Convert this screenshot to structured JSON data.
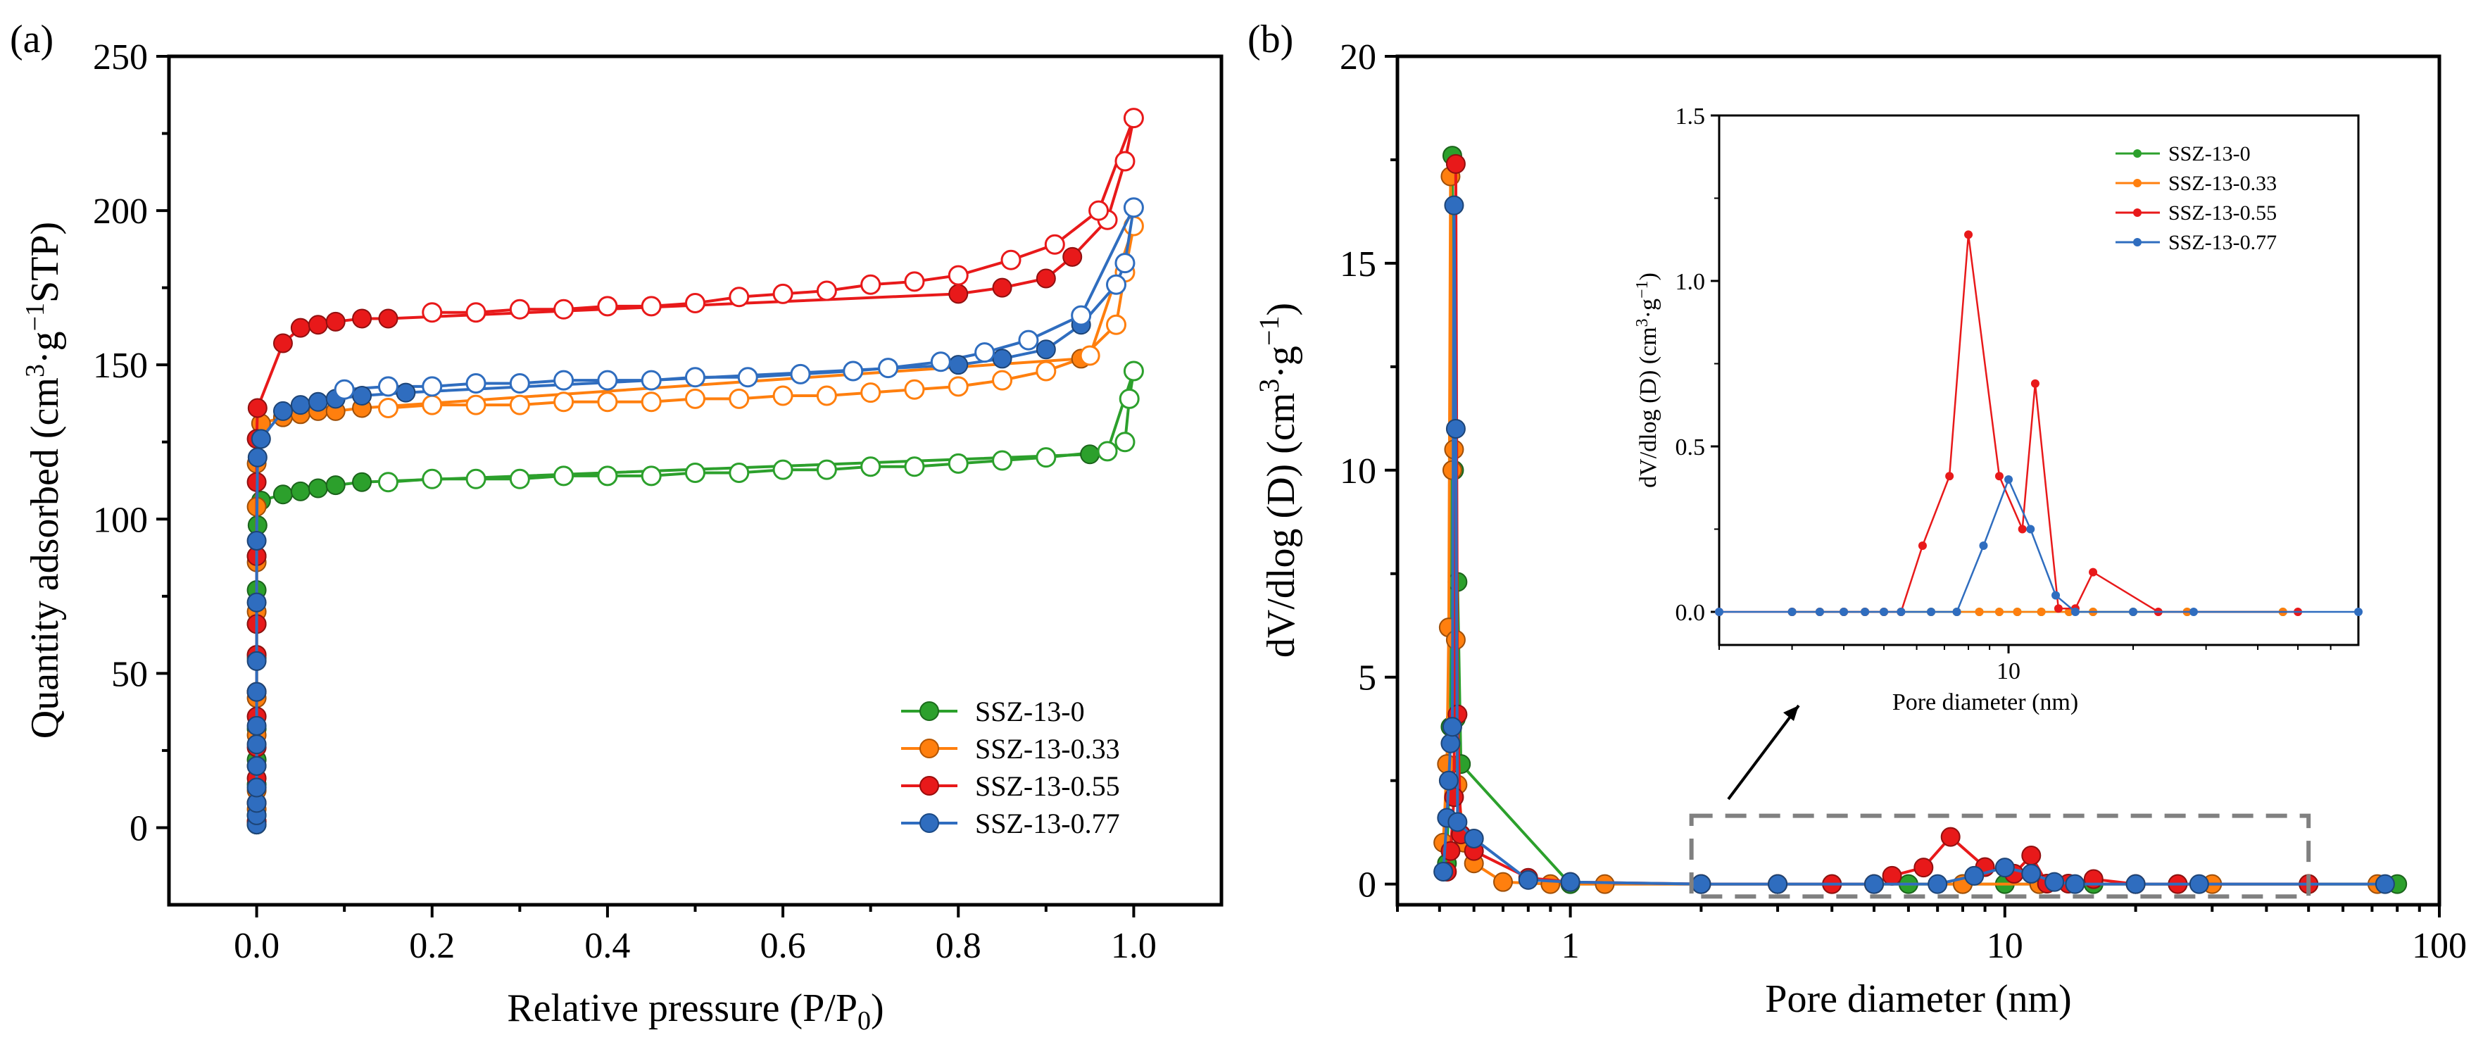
{
  "panel_a_label": "(a)",
  "panel_b_label": "(b)",
  "colors": {
    "SSZ-13-0": "#2ca02c",
    "SSZ-13-0.33": "#ff7f0e",
    "SSZ-13-0.55": "#e8191a",
    "SSZ-13-0.77": "#2f6dbf"
  },
  "chart_data": [
    {
      "id": "a",
      "type": "scatter",
      "title": "",
      "xlabel": "Relative pressure (P/P",
      "xlabel_sub": "0",
      "xlabel_end": ")",
      "ylabel_pre": "Quantity adsorbed (cm",
      "ylabel_sup1": "3",
      "ylabel_mid": "·g",
      "ylabel_sup2": "−1",
      "ylabel_end": "STP)",
      "xlim": [
        -0.1,
        1.1
      ],
      "ylim": [
        -25,
        250
      ],
      "xticks": [
        "0.0",
        "0.2",
        "0.4",
        "0.6",
        "0.8",
        "1.0"
      ],
      "xtick_values": [
        0,
        0.2,
        0.4,
        0.6,
        0.8,
        1.0
      ],
      "yticks": [
        "0",
        "50",
        "100",
        "150",
        "200",
        "250"
      ],
      "ytick_values": [
        0,
        50,
        100,
        150,
        200,
        250
      ],
      "legend": [
        "SSZ-13-0",
        "SSZ-13-0.33",
        "SSZ-13-0.55",
        "SSZ-13-0.77"
      ],
      "legend_position": "bottom-right",
      "series": [
        {
          "name": "SSZ-13-0",
          "adsorption": {
            "x": [
              0.0,
              0.0,
              0.0,
              0.0,
              0.0,
              0.0,
              0.0,
              0.0,
              0.0,
              0.0,
              0.0,
              0.001,
              0.005,
              0.03,
              0.05,
              0.07,
              0.09,
              0.12,
              0.95,
              0.99
            ],
            "y": [
              1,
              4,
              8,
              14,
              22,
              32,
              44,
              55,
              66,
              77,
              88,
              98,
              106,
              108,
              109,
              110,
              111,
              112,
              121,
              125
            ]
          },
          "desorption": {
            "x": [
              0.99,
              0.995,
              1.0,
              0.97,
              0.9,
              0.85,
              0.8,
              0.75,
              0.7,
              0.65,
              0.6,
              0.55,
              0.5,
              0.45,
              0.4,
              0.35,
              0.3,
              0.25,
              0.2,
              0.15
            ],
            "y": [
              125,
              139,
              148,
              122,
              120,
              119,
              118,
              117,
              117,
              116,
              116,
              115,
              115,
              114,
              114,
              114,
              113,
              113,
              113,
              112
            ]
          }
        },
        {
          "name": "SSZ-13-0.33",
          "adsorption": {
            "x": [
              0.0,
              0.0,
              0.0,
              0.0,
              0.0,
              0.0,
              0.0,
              0.0,
              0.0,
              0.0,
              0.0,
              0.001,
              0.005,
              0.03,
              0.05,
              0.07,
              0.09,
              0.12,
              0.94,
              0.98
            ],
            "y": [
              2,
              6,
              12,
              20,
              30,
              42,
              56,
              70,
              86,
              104,
              118,
              126,
              131,
              133,
              134,
              135,
              135,
              136,
              152,
              163
            ]
          },
          "desorption": {
            "x": [
              0.98,
              0.99,
              1.0,
              0.95,
              0.9,
              0.85,
              0.8,
              0.75,
              0.7,
              0.65,
              0.6,
              0.55,
              0.5,
              0.45,
              0.4,
              0.35,
              0.3,
              0.25,
              0.2,
              0.15
            ],
            "y": [
              163,
              180,
              195,
              153,
              148,
              145,
              143,
              142,
              141,
              140,
              140,
              139,
              139,
              138,
              138,
              138,
              137,
              137,
              137,
              136
            ]
          }
        },
        {
          "name": "SSZ-13-0.55",
          "adsorption": {
            "x": [
              0.0,
              0.0,
              0.0,
              0.0,
              0.0,
              0.0,
              0.0,
              0.0,
              0.0,
              0.0,
              0.0,
              0.001,
              0.03,
              0.05,
              0.07,
              0.09,
              0.12,
              0.15,
              0.8,
              0.85,
              0.9,
              0.93,
              0.97
            ],
            "y": [
              2,
              8,
              16,
              26,
              36,
              44,
              56,
              66,
              88,
              112,
              126,
              136,
              157,
              162,
              163,
              164,
              165,
              165,
              173,
              175,
              178,
              185,
              197
            ]
          },
          "desorption": {
            "x": [
              0.97,
              0.99,
              1.0,
              0.96,
              0.91,
              0.86,
              0.8,
              0.75,
              0.7,
              0.65,
              0.6,
              0.55,
              0.5,
              0.45,
              0.4,
              0.35,
              0.3,
              0.25,
              0.2
            ],
            "y": [
              197,
              216,
              230,
              200,
              189,
              184,
              179,
              177,
              176,
              174,
              173,
              172,
              170,
              169,
              169,
              168,
              168,
              167,
              167
            ]
          }
        },
        {
          "name": "SSZ-13-0.77",
          "adsorption": {
            "x": [
              0.0,
              0.0,
              0.0,
              0.0,
              0.0,
              0.0,
              0.0,
              0.0,
              0.0,
              0.0,
              0.0,
              0.001,
              0.005,
              0.03,
              0.05,
              0.07,
              0.09,
              0.12,
              0.17,
              0.8,
              0.85,
              0.9,
              0.94,
              0.98
            ],
            "y": [
              1,
              4,
              8,
              13,
              20,
              27,
              33,
              44,
              54,
              73,
              93,
              120,
              126,
              135,
              137,
              138,
              139,
              140,
              141,
              150,
              152,
              155,
              163,
              176
            ]
          },
          "desorption": {
            "x": [
              0.98,
              0.99,
              1.0,
              0.94,
              0.88,
              0.83,
              0.78,
              0.72,
              0.68,
              0.62,
              0.56,
              0.5,
              0.45,
              0.4,
              0.35,
              0.3,
              0.25,
              0.2,
              0.15,
              0.1
            ],
            "y": [
              176,
              183,
              201,
              166,
              158,
              154,
              151,
              149,
              148,
              147,
              146,
              146,
              145,
              145,
              145,
              144,
              144,
              143,
              143,
              142
            ]
          }
        }
      ]
    },
    {
      "id": "b",
      "type": "line",
      "title": "",
      "xlabel": "Pore diameter (nm)",
      "ylabel_pre": "dV/dlog (D) (cm",
      "ylabel_sup1": "3",
      "ylabel_mid": "·g",
      "ylabel_sup2": "−1",
      "ylabel_end": ")",
      "xscale": "log",
      "xlim": [
        0.4,
        100
      ],
      "ylim": [
        -0.5,
        20
      ],
      "xticks": [
        "1",
        "10",
        "100"
      ],
      "xtick_values": [
        1,
        10,
        100
      ],
      "yticks": [
        "0",
        "5",
        "10",
        "15",
        "20"
      ],
      "ytick_values": [
        0,
        5,
        10,
        15,
        20
      ],
      "highlight_box": {
        "x_range": [
          1.9,
          50
        ],
        "y_range": [
          -0.3,
          1.65
        ]
      },
      "series": [
        {
          "name": "SSZ-13-0",
          "x": [
            0.52,
            0.53,
            0.535,
            0.54,
            0.545,
            0.55,
            0.56,
            1.0,
            2.0,
            3.0,
            4.0,
            5.0,
            6.0,
            8.0,
            10.0,
            12.0,
            16.0,
            25.0,
            50.0,
            80.0
          ],
          "y": [
            0.5,
            3.8,
            17.6,
            10.0,
            4.0,
            7.3,
            2.9,
            0.0,
            0.0,
            0.0,
            0.0,
            0.0,
            0.0,
            0.0,
            0.0,
            0.0,
            0.0,
            0.0,
            0.0,
            0.0
          ]
        },
        {
          "name": "SSZ-13-0.33",
          "x": [
            0.51,
            0.52,
            0.525,
            0.53,
            0.535,
            0.54,
            0.545,
            0.55,
            0.57,
            0.6,
            0.7,
            0.9,
            1.2,
            2.0,
            3.0,
            5.0,
            8.0,
            12.0,
            20.0,
            30.0,
            50.0,
            72.0
          ],
          "y": [
            1.0,
            2.9,
            6.2,
            17.1,
            10.0,
            10.5,
            5.9,
            2.4,
            1.0,
            0.5,
            0.05,
            0.0,
            0.0,
            0.0,
            0.0,
            0.0,
            0.0,
            0.0,
            0.0,
            0.0,
            0.0,
            0.0
          ]
        },
        {
          "name": "SSZ-13-0.55",
          "x": [
            0.52,
            0.53,
            0.54,
            0.545,
            0.55,
            0.56,
            0.6,
            0.8,
            1.0,
            2.0,
            3.0,
            4.0,
            5.0,
            5.5,
            6.5,
            7.5,
            9.0,
            10.5,
            11.5,
            12.5,
            14.0,
            16.0,
            20.0,
            25.0,
            50.0
          ],
          "y": [
            0.3,
            0.8,
            2.1,
            17.4,
            4.1,
            1.2,
            0.8,
            0.15,
            0.05,
            0.0,
            0.0,
            0.0,
            0.0,
            0.2,
            0.4,
            1.14,
            0.41,
            0.25,
            0.69,
            0.01,
            0.01,
            0.12,
            0.0,
            0.0,
            0.0
          ]
        },
        {
          "name": "SSZ-13-0.77",
          "x": [
            0.51,
            0.52,
            0.525,
            0.53,
            0.535,
            0.54,
            0.545,
            0.55,
            0.6,
            0.8,
            1.0,
            2.0,
            3.0,
            5.0,
            7.0,
            8.5,
            10.0,
            11.5,
            13.0,
            14.5,
            20.0,
            28.0,
            75.0
          ],
          "y": [
            0.3,
            1.6,
            2.5,
            3.4,
            3.8,
            16.4,
            11.0,
            1.5,
            1.1,
            0.1,
            0.05,
            0.0,
            0.0,
            0.0,
            0.0,
            0.2,
            0.4,
            0.25,
            0.05,
            0.0,
            0.0,
            0.0,
            0.0
          ]
        }
      ],
      "inset": {
        "xscale": "log",
        "xlim": [
          2,
          70
        ],
        "ylim": [
          -0.1,
          1.5
        ],
        "xticks": [
          "10"
        ],
        "xtick_values": [
          10
        ],
        "yticks": [
          "0.0",
          "0.5",
          "1.0",
          "1.5"
        ],
        "ytick_values": [
          0,
          0.5,
          1.0,
          1.5
        ],
        "xlabel": "Pore diameter (nm)",
        "ylabel_pre": "dV/dlog (D) (cm",
        "ylabel_sup1": "3",
        "ylabel_mid": "·g",
        "ylabel_sup2": "−1",
        "ylabel_end": ")",
        "legend": [
          "SSZ-13-0",
          "SSZ-13-0.33",
          "SSZ-13-0.55",
          "SSZ-13-0.77"
        ],
        "legend_position": "top-right",
        "series": [
          {
            "name": "SSZ-13-0",
            "x": [
              3.0,
              3.5,
              4.0,
              4.5,
              5.0,
              5.5,
              6.5,
              7.5,
              8.5,
              9.5,
              10.5,
              12.0,
              14.0,
              16.0,
              20.0,
              27.0,
              46.0
            ],
            "y": [
              0,
              0,
              0,
              0,
              0,
              0,
              0,
              0,
              0,
              0,
              0,
              0,
              0,
              0,
              0,
              0,
              0
            ]
          },
          {
            "name": "SSZ-13-0.33",
            "x": [
              3.0,
              3.5,
              4.0,
              4.5,
              5.0,
              5.5,
              6.5,
              7.5,
              8.5,
              9.5,
              10.5,
              12.0,
              14.0,
              16.0,
              20.0,
              27.0,
              46.0
            ],
            "y": [
              0,
              0,
              0,
              0,
              0,
              0,
              0,
              0,
              0,
              0,
              0,
              0,
              0,
              0,
              0,
              0,
              0
            ]
          },
          {
            "name": "SSZ-13-0.55",
            "x": [
              2.0,
              3.0,
              3.5,
              4.0,
              4.5,
              5.0,
              5.5,
              6.2,
              7.2,
              8.0,
              9.5,
              10.8,
              11.6,
              13.2,
              14.5,
              16.0,
              23.0,
              50.0
            ],
            "y": [
              0,
              0,
              0,
              0,
              0,
              0,
              0,
              0.2,
              0.41,
              1.14,
              0.41,
              0.25,
              0.69,
              0.01,
              0.01,
              0.12,
              0,
              0
            ]
          },
          {
            "name": "SSZ-13-0.77",
            "x": [
              2.0,
              3.0,
              3.5,
              4.0,
              4.5,
              5.0,
              5.5,
              6.5,
              7.5,
              8.7,
              10.0,
              11.3,
              13.0,
              14.5,
              20.0,
              28.0,
              70.0
            ],
            "y": [
              0,
              0,
              0,
              0,
              0,
              0,
              0,
              0,
              0,
              0.2,
              0.4,
              0.25,
              0.05,
              0.0,
              0,
              0,
              0
            ]
          }
        ]
      }
    }
  ]
}
